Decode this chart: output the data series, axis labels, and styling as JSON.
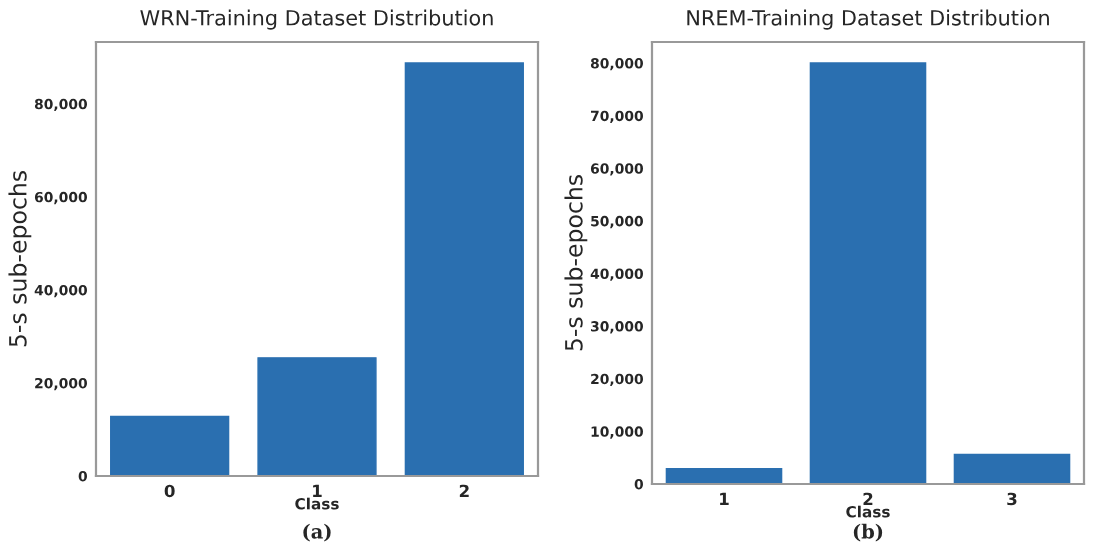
{
  "chart_data": [
    {
      "type": "bar",
      "title": "WRN-Training Dataset Distribution",
      "xlabel": "Class",
      "ylabel": "5-s sub-epochs",
      "categories": [
        "0",
        "1",
        "2"
      ],
      "values": [
        12800,
        25400,
        88800
      ],
      "color": "#2a6fb0",
      "ylim": [
        0,
        93300
      ],
      "yticks": [
        {
          "value": 0,
          "label": "0"
        },
        {
          "value": 20000,
          "label": "20,000"
        },
        {
          "value": 40000,
          "label": "40,000"
        },
        {
          "value": 60000,
          "label": "60,000"
        },
        {
          "value": 80000,
          "label": "80,000"
        }
      ],
      "grid": false,
      "annotations": [
        "(a)"
      ]
    },
    {
      "type": "bar",
      "title": "NREM-Training Dataset Distribution",
      "xlabel": "Class",
      "ylabel": "5-s sub-epochs",
      "categories": [
        "1",
        "2",
        "3"
      ],
      "values": [
        2900,
        80000,
        5600
      ],
      "color": "#2a6fb0",
      "ylim": [
        0,
        84000
      ],
      "yticks": [
        {
          "value": 0,
          "label": "0"
        },
        {
          "value": 10000,
          "label": "10,000"
        },
        {
          "value": 20000,
          "label": "20,000"
        },
        {
          "value": 30000,
          "label": "30,000"
        },
        {
          "value": 40000,
          "label": "40,000"
        },
        {
          "value": 50000,
          "label": "50,000"
        },
        {
          "value": 60000,
          "label": "60,000"
        },
        {
          "value": 70000,
          "label": "70,000"
        },
        {
          "value": 80000,
          "label": "80,000"
        }
      ],
      "grid": false,
      "annotations": [
        "(b)"
      ]
    }
  ]
}
